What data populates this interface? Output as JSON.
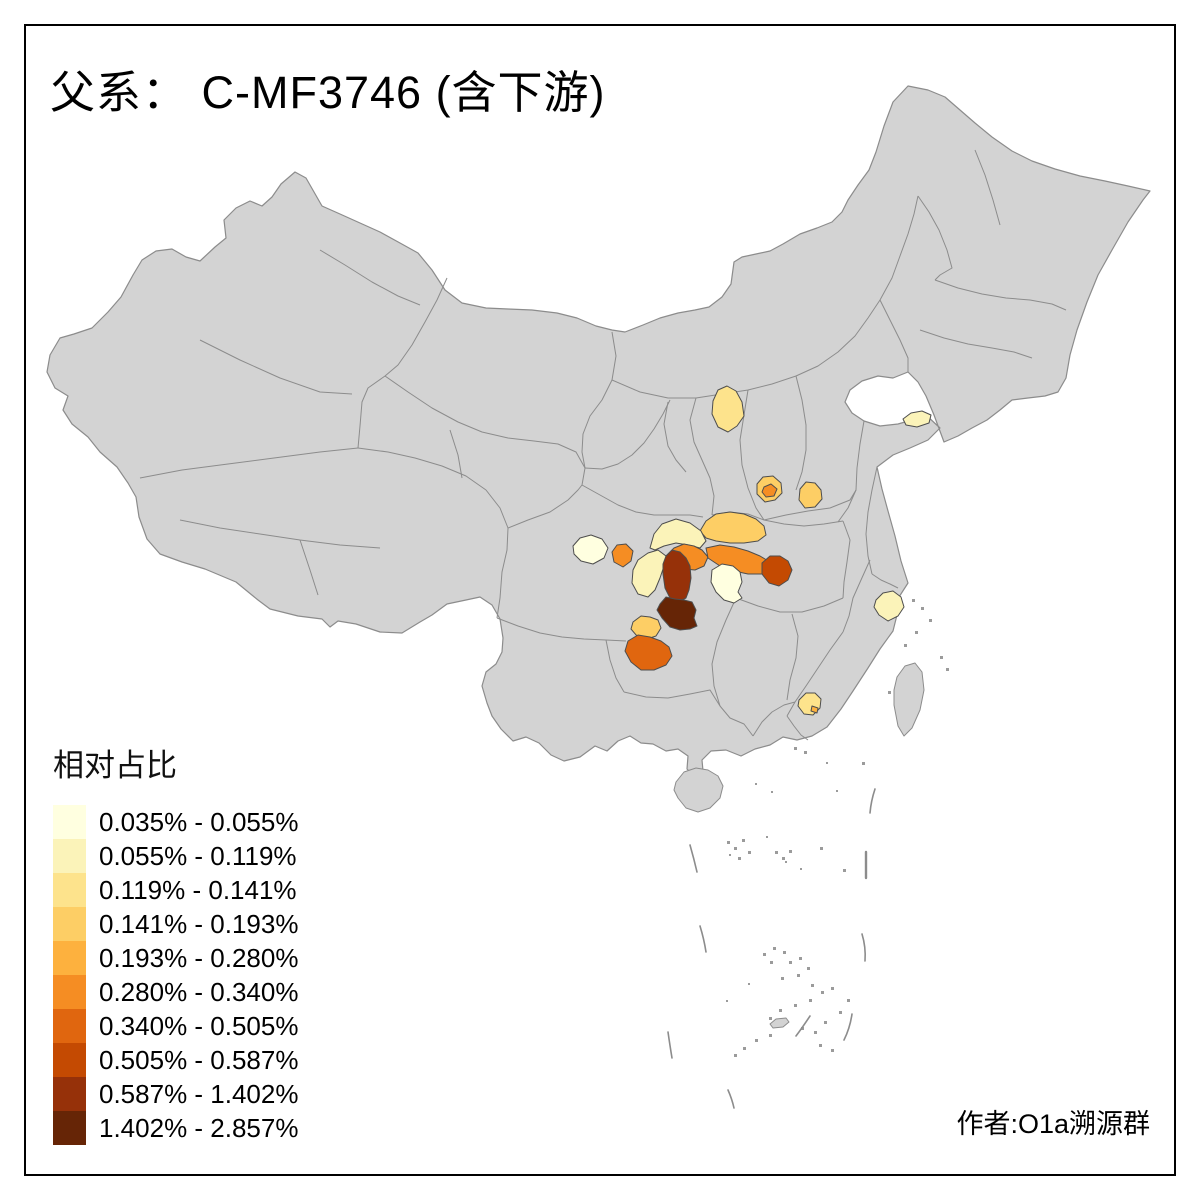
{
  "title": "父系： C-MF3746 (含下游)",
  "credit": "作者:O1a溯源群",
  "legend": {
    "title": "相对占比",
    "classes": [
      {
        "range": "0.035% - 0.055%",
        "color": "#FFFFE0"
      },
      {
        "range": "0.055% - 0.119%",
        "color": "#FBF3B9"
      },
      {
        "range": "0.119% - 0.141%",
        "color": "#FDE38C"
      },
      {
        "range": "0.141% - 0.193%",
        "color": "#FDCE65"
      },
      {
        "range": "0.193% - 0.280%",
        "color": "#FDB13E"
      },
      {
        "range": "0.280% - 0.340%",
        "color": "#F58D23"
      },
      {
        "range": "0.340% - 0.505%",
        "color": "#E0660F"
      },
      {
        "range": "0.505% - 0.587%",
        "color": "#C44A02"
      },
      {
        "range": "0.587% - 1.402%",
        "color": "#963109"
      },
      {
        "range": "1.402% - 2.857%",
        "color": "#662506"
      }
    ]
  },
  "map": {
    "background": "#FFFFFF",
    "frame_color": "#000000",
    "base_fill": "#D3D3D3",
    "border_color": "#8C8C8C",
    "patch_border_color": "#4D4D4D",
    "islet_color": "#9B9B9B",
    "patches": [
      {
        "id": "p1",
        "class_index": 2
      },
      {
        "id": "p2",
        "class_index": 1
      },
      {
        "id": "p3",
        "class_index": 3
      },
      {
        "id": "p4",
        "class_index": 5
      },
      {
        "id": "p5",
        "class_index": 3
      },
      {
        "id": "p6",
        "class_index": 3
      },
      {
        "id": "p7",
        "class_index": 1
      },
      {
        "id": "p8",
        "class_index": 0
      },
      {
        "id": "p9",
        "class_index": 5
      },
      {
        "id": "p10",
        "class_index": 1
      },
      {
        "id": "p11",
        "class_index": 5
      },
      {
        "id": "p12",
        "class_index": 5
      },
      {
        "id": "p13",
        "class_index": 0
      },
      {
        "id": "p14",
        "class_index": 8
      },
      {
        "id": "p15",
        "class_index": 9
      },
      {
        "id": "p16",
        "class_index": 7
      },
      {
        "id": "p17",
        "class_index": 3
      },
      {
        "id": "p18",
        "class_index": 6
      },
      {
        "id": "p19",
        "class_index": 1
      },
      {
        "id": "p20",
        "class_index": 2
      },
      {
        "id": "p21",
        "class_index": 4
      }
    ]
  }
}
